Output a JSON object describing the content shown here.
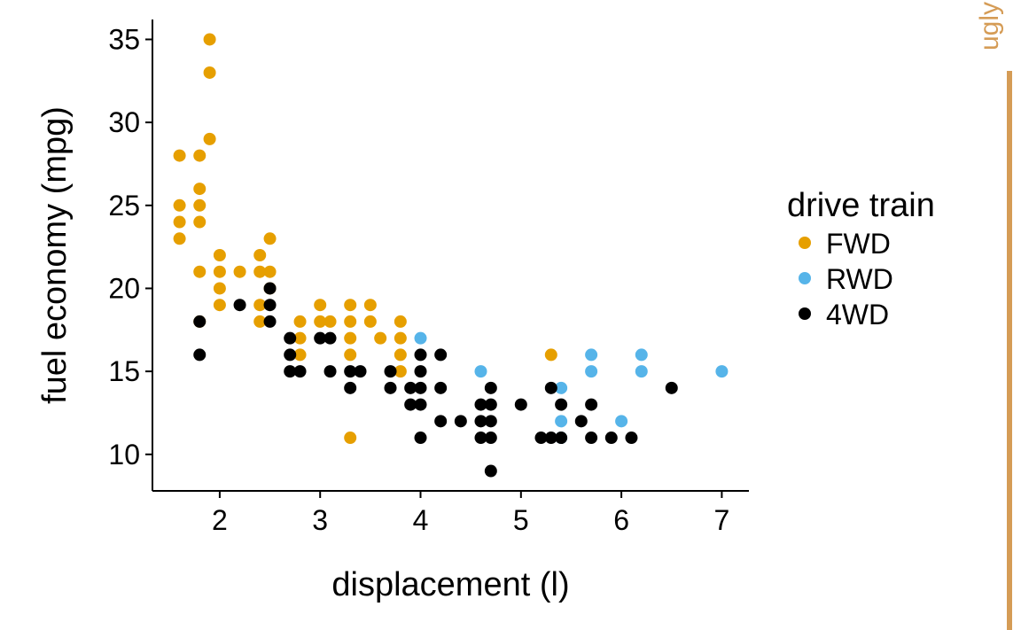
{
  "side_label": {
    "text": "ugly",
    "color": "#D59C56"
  },
  "chart_data": {
    "type": "scatter",
    "title": "",
    "xlabel": "displacement (l)",
    "ylabel": "fuel economy (mpg)",
    "xlim": [
      1.33,
      7.27
    ],
    "ylim": [
      7.8,
      36.2
    ],
    "xticks": [
      2,
      3,
      4,
      5,
      6,
      7
    ],
    "yticks": [
      10,
      15,
      20,
      25,
      30,
      35
    ],
    "grid": false,
    "legend": {
      "title": "drive train",
      "position": "right"
    },
    "series": [
      {
        "name": "FWD",
        "color": "#E69F00",
        "points": [
          [
            1.6,
            28
          ],
          [
            1.6,
            25
          ],
          [
            1.6,
            24
          ],
          [
            1.6,
            23
          ],
          [
            1.8,
            28
          ],
          [
            1.8,
            26
          ],
          [
            1.8,
            25
          ],
          [
            1.8,
            24
          ],
          [
            1.8,
            21
          ],
          [
            1.8,
            18
          ],
          [
            1.9,
            35
          ],
          [
            1.9,
            33
          ],
          [
            1.9,
            29
          ],
          [
            2.0,
            22
          ],
          [
            2.0,
            21
          ],
          [
            2.0,
            20
          ],
          [
            2.0,
            19
          ],
          [
            2.2,
            21
          ],
          [
            2.4,
            22
          ],
          [
            2.4,
            21
          ],
          [
            2.4,
            19
          ],
          [
            2.4,
            18
          ],
          [
            2.5,
            23
          ],
          [
            2.5,
            21
          ],
          [
            2.5,
            20
          ],
          [
            2.8,
            18
          ],
          [
            2.8,
            17
          ],
          [
            2.8,
            16
          ],
          [
            3.0,
            19
          ],
          [
            3.0,
            18
          ],
          [
            3.1,
            18
          ],
          [
            3.3,
            19
          ],
          [
            3.3,
            18
          ],
          [
            3.3,
            17
          ],
          [
            3.3,
            16
          ],
          [
            3.3,
            11
          ],
          [
            3.5,
            19
          ],
          [
            3.5,
            18
          ],
          [
            3.6,
            17
          ],
          [
            3.8,
            18
          ],
          [
            3.8,
            17
          ],
          [
            3.8,
            16
          ],
          [
            3.8,
            15
          ],
          [
            5.3,
            16
          ]
        ]
      },
      {
        "name": "RWD",
        "color": "#56B4E9",
        "points": [
          [
            4.0,
            17
          ],
          [
            4.6,
            15
          ],
          [
            5.4,
            14
          ],
          [
            5.4,
            12
          ],
          [
            5.4,
            11
          ],
          [
            5.7,
            16
          ],
          [
            5.7,
            15
          ],
          [
            6.0,
            12
          ],
          [
            6.2,
            16
          ],
          [
            6.2,
            15
          ],
          [
            7.0,
            15
          ]
        ]
      },
      {
        "name": "4WD",
        "color": "#000000",
        "points": [
          [
            1.8,
            18
          ],
          [
            1.8,
            16
          ],
          [
            2.2,
            19
          ],
          [
            2.5,
            20
          ],
          [
            2.5,
            19
          ],
          [
            2.5,
            18
          ],
          [
            2.7,
            17
          ],
          [
            2.7,
            16
          ],
          [
            2.7,
            15
          ],
          [
            2.8,
            15
          ],
          [
            3.0,
            17
          ],
          [
            3.1,
            17
          ],
          [
            3.1,
            15
          ],
          [
            3.3,
            15
          ],
          [
            3.3,
            14
          ],
          [
            3.4,
            15
          ],
          [
            3.7,
            15
          ],
          [
            3.7,
            14
          ],
          [
            3.9,
            14
          ],
          [
            3.9,
            13
          ],
          [
            4.0,
            16
          ],
          [
            4.0,
            15
          ],
          [
            4.0,
            14
          ],
          [
            4.0,
            13
          ],
          [
            4.0,
            11
          ],
          [
            4.2,
            16
          ],
          [
            4.2,
            14
          ],
          [
            4.2,
            12
          ],
          [
            4.4,
            12
          ],
          [
            4.6,
            13
          ],
          [
            4.6,
            12
          ],
          [
            4.6,
            11
          ],
          [
            4.7,
            14
          ],
          [
            4.7,
            13
          ],
          [
            4.7,
            12
          ],
          [
            4.7,
            11
          ],
          [
            4.7,
            9
          ],
          [
            5.0,
            13
          ],
          [
            5.2,
            11
          ],
          [
            5.3,
            14
          ],
          [
            5.3,
            11
          ],
          [
            5.4,
            13
          ],
          [
            5.4,
            11
          ],
          [
            5.6,
            12
          ],
          [
            5.7,
            13
          ],
          [
            5.7,
            11
          ],
          [
            5.9,
            11
          ],
          [
            6.1,
            11
          ],
          [
            6.5,
            14
          ]
        ]
      }
    ]
  }
}
